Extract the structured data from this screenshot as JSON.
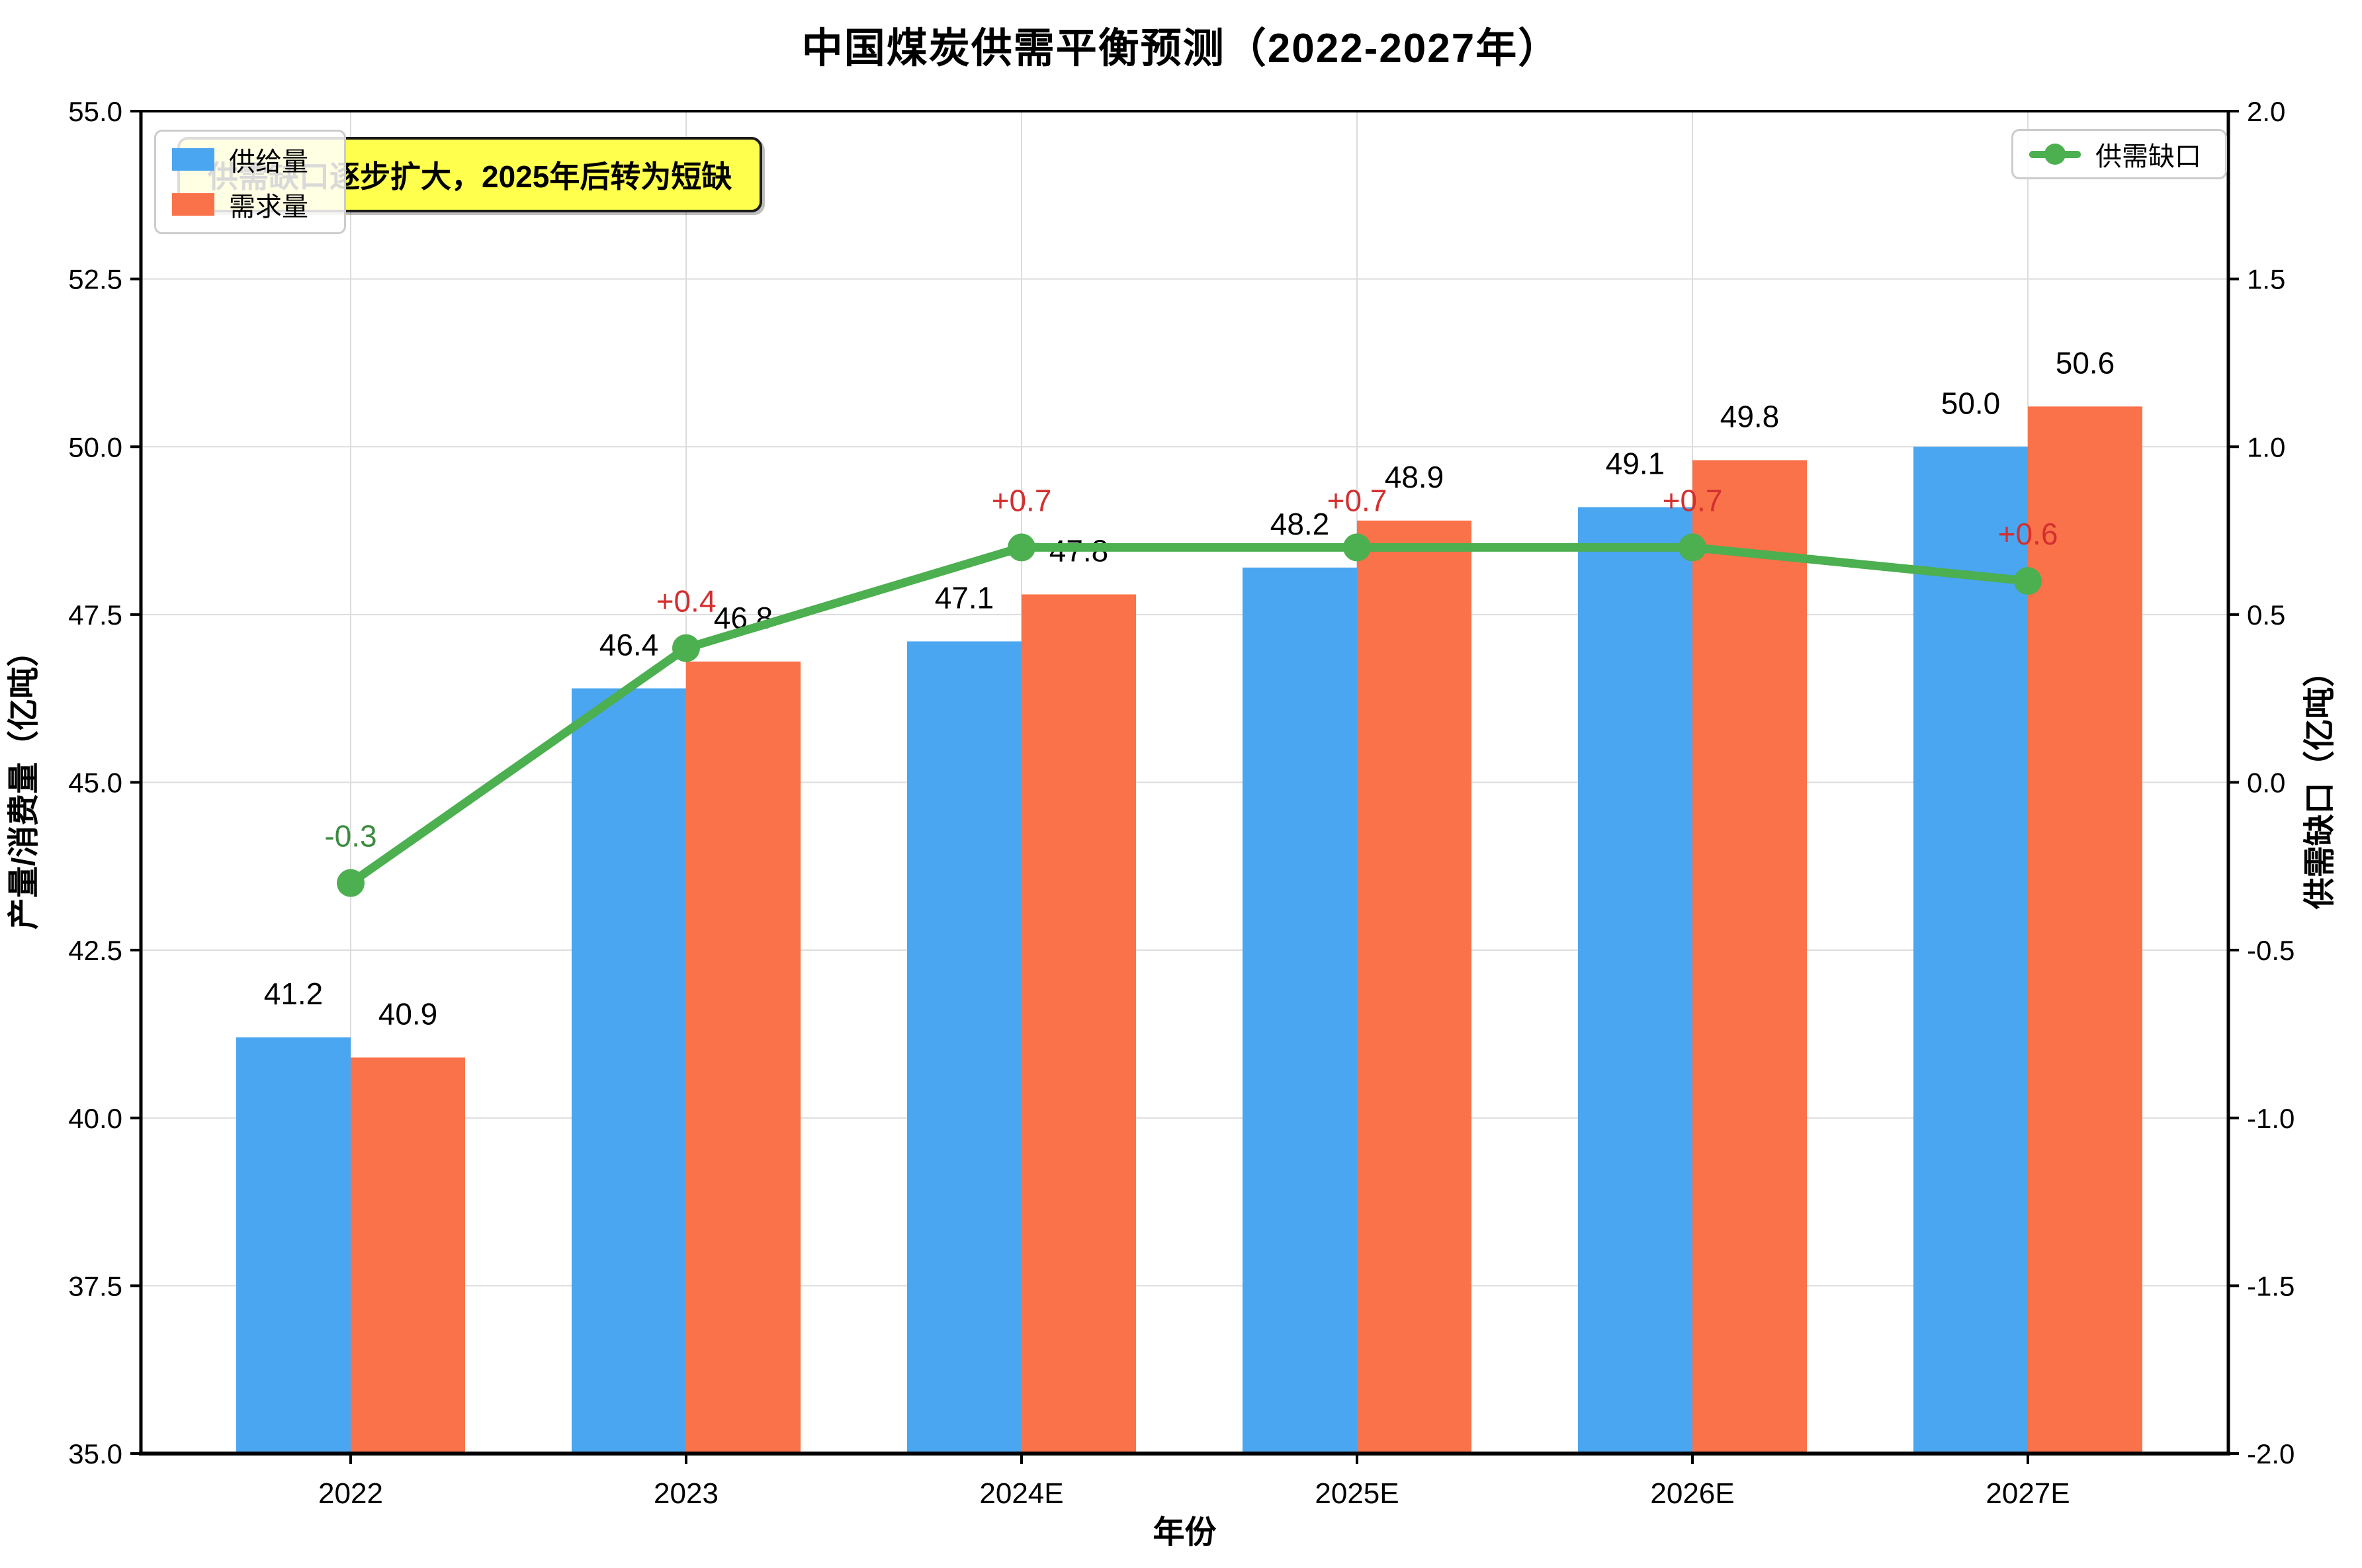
{
  "title": "中国煤炭供需平衡预测（2022-2027年）",
  "annotation": {
    "text": "供需缺口逐步扩大，2025年后转为短缺"
  },
  "legend_left": {
    "items": [
      {
        "key": "supply",
        "label": "供给量"
      },
      {
        "key": "demand",
        "label": "需求量"
      }
    ]
  },
  "legend_right": {
    "label": "供需缺口"
  },
  "colors": {
    "supply": "#4AA6F0",
    "demand": "#FA7249",
    "gap_line": "#4CAF50",
    "gap_label_positive": "#D32F2F",
    "gap_label_negative": "#3D8B40",
    "annotation_bg": "#FFFF4D",
    "grid": "#DCDCDC",
    "bar_label": "#000000"
  },
  "chart_data": {
    "type": "bar",
    "categories": [
      "2022",
      "2023",
      "2024E",
      "2025E",
      "2026E",
      "2027E"
    ],
    "series": [
      {
        "key": "supply",
        "name": "供给量",
        "type": "bar",
        "axis": "left",
        "values": [
          41.2,
          46.4,
          47.1,
          48.2,
          49.1,
          50.0
        ]
      },
      {
        "key": "demand",
        "name": "需求量",
        "type": "bar",
        "axis": "left",
        "values": [
          40.9,
          46.8,
          47.8,
          48.9,
          49.8,
          50.6
        ]
      },
      {
        "key": "gap",
        "name": "供需缺口",
        "type": "line",
        "axis": "right",
        "values": [
          -0.3,
          0.4,
          0.7,
          0.7,
          0.7,
          0.6
        ],
        "point_labels": [
          "-0.3",
          "+0.4",
          "+0.7",
          "+0.7",
          "+0.7",
          "+0.6"
        ]
      }
    ],
    "xlabel": "年份",
    "ylabel_left": "产量/消费量（亿吨）",
    "ylabel_right": "供需缺口（亿吨）",
    "ylim_left": [
      35.0,
      55.0
    ],
    "yticks_left": [
      35.0,
      37.5,
      40.0,
      42.5,
      45.0,
      47.5,
      50.0,
      52.5,
      55.0
    ],
    "ylim_right": [
      -2.0,
      2.0
    ],
    "yticks_right": [
      -2.0,
      -1.5,
      -1.0,
      -0.5,
      0.0,
      0.5,
      1.0,
      1.5,
      2.0
    ],
    "grid": true,
    "legend_positions": {
      "bars": "upper left",
      "line": "upper right"
    }
  }
}
